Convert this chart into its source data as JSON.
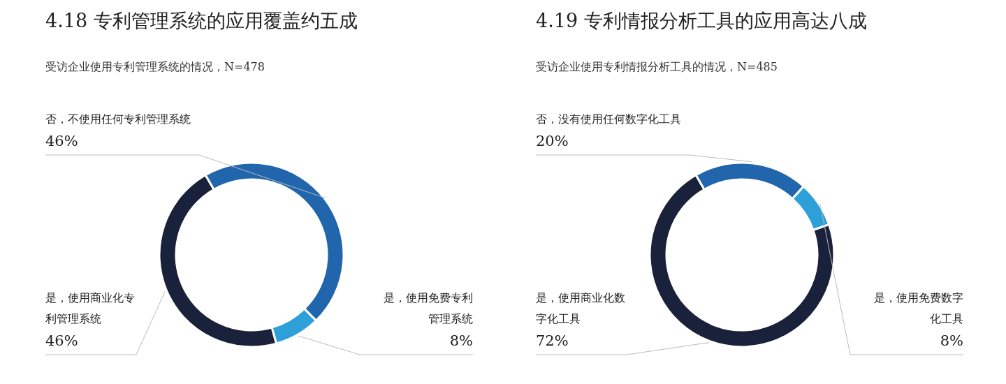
{
  "chart_data": [
    {
      "type": "donut",
      "title": "4.18 专利管理系统的应用覆盖约五成",
      "subtitle": "受访企业使用专利管理系统的情况，N=478",
      "categories": [
        "否，不使用任何专利管理系统",
        "是，使用免费专利管理系统",
        "是，使用商业化专利管理系统"
      ],
      "values": [
        46,
        8,
        46
      ],
      "value_labels": [
        "46%",
        "8%",
        "46%"
      ],
      "colors": [
        "#2166ac",
        "#2d9fd9",
        "#19213b"
      ]
    },
    {
      "type": "donut",
      "title": "4.19 专利情报分析工具的应用高达八成",
      "subtitle": "受访企业使用专利情报分析工具的情况，N=485",
      "categories": [
        "否，没有使用任何数字化工具",
        "是，使用免费数字化工具",
        "是，使用商业化数字化工具"
      ],
      "values": [
        20,
        8,
        72
      ],
      "value_labels": [
        "20%",
        "8%",
        "72%"
      ],
      "colors": [
        "#2166ac",
        "#2d9fd9",
        "#19213b"
      ]
    }
  ]
}
